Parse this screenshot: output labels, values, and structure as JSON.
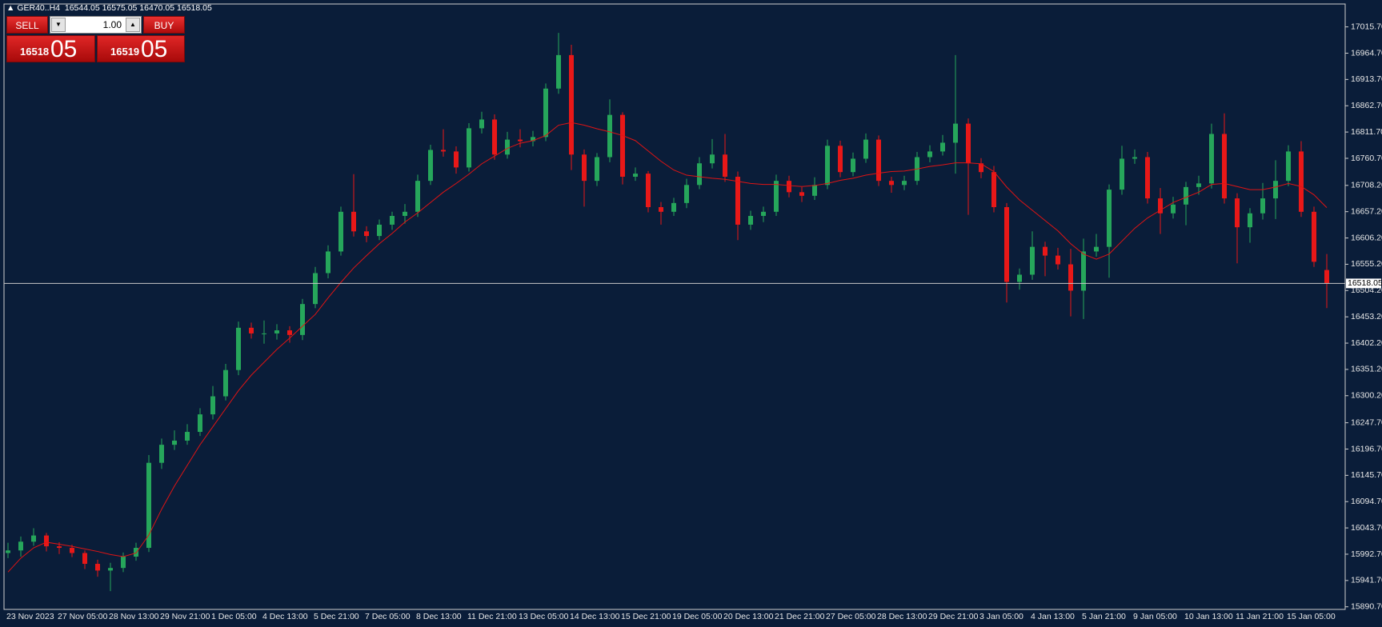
{
  "header": {
    "symbol": "GER40..H4",
    "ohlc": "16544.05 16575.05 16470.05 16518.05"
  },
  "trade_panel": {
    "sell": "SELL",
    "volume": "1.00",
    "buy": "BUY",
    "sell_price": {
      "main": "16518",
      "pips": "05"
    },
    "buy_price": {
      "main": "16519",
      "pips": "05"
    }
  },
  "chart_data": {
    "type": "candlestick",
    "categories": [
      "23 Nov 2023",
      null,
      null,
      null,
      "27 Nov 05:00",
      null,
      null,
      null,
      "28 Nov 13:00",
      null,
      null,
      null,
      "29 Nov 21:00",
      null,
      null,
      null,
      "1 Dec 05:00",
      null,
      null,
      null,
      "4 Dec 13:00",
      null,
      null,
      null,
      "5 Dec 21:00",
      null,
      null,
      null,
      "7 Dec 05:00",
      null,
      null,
      null,
      "8 Dec 13:00",
      null,
      null,
      null,
      "11 Dec 21:00",
      null,
      null,
      null,
      "13 Dec 05:00",
      null,
      null,
      null,
      "14 Dec 13:00",
      null,
      null,
      null,
      "15 Dec 21:00",
      null,
      null,
      null,
      "19 Dec 05:00",
      null,
      null,
      null,
      "20 Dec 13:00",
      null,
      null,
      null,
      "21 Dec 21:00",
      null,
      null,
      null,
      "27 Dec 05:00",
      null,
      null,
      null,
      "28 Dec 13:00",
      null,
      null,
      null,
      "29 Dec 21:00",
      null,
      null,
      null,
      "3 Jan 05:00",
      null,
      null,
      null,
      "4 Jan 13:00",
      null,
      null,
      null,
      "5 Jan 21:00",
      null,
      null,
      null,
      "9 Jan 05:00",
      null,
      null,
      null,
      "10 Jan 13:00",
      null,
      null,
      null,
      "11 Jan 21:00",
      null,
      null,
      null,
      "15 Jan 05:00",
      null,
      null,
      null
    ],
    "open": [
      15995,
      16000,
      16017,
      16029,
      16008,
      16005,
      15995,
      15974,
      15961,
      15966,
      15988,
      16005,
      16170,
      16205,
      16213,
      16230,
      16264,
      16299,
      16350,
      16432,
      16421,
      16421,
      16427,
      16418,
      16478,
      16538,
      16580,
      16657,
      16619,
      16610,
      16632,
      16649,
      16657,
      16717,
      16777,
      16774,
      16743,
      16819,
      16836,
      16768,
      16797,
      16794,
      16802,
      16896,
      16961,
      16768,
      16717,
      16763,
      16845,
      16725,
      16731,
      16666,
      16657,
      16674,
      16709,
      16751,
      16768,
      16725,
      16632,
      16649,
      16657,
      16717,
      16695,
      16688,
      16709,
      16785,
      16734,
      16760,
      16797,
      16717,
      16709,
      16717,
      16763,
      16774,
      16791,
      16828,
      16751,
      16734,
      16666,
      16521,
      16535,
      16589,
      16572,
      16555,
      16504,
      16580,
      16589,
      16700,
      16760,
      16763,
      16683,
      16654,
      16671,
      16705,
      16712,
      16808,
      16683,
      16627,
      16654,
      16683,
      16717,
      16774,
      16657,
      16544.05
    ],
    "high": [
      16015,
      16027,
      16043,
      16034,
      16016,
      16011,
      16000,
      15982,
      15976,
      15996,
      16015,
      16185,
      16217,
      16233,
      16245,
      16276,
      16319,
      16362,
      16444,
      16442,
      16446,
      16439,
      16435,
      16488,
      16550,
      16592,
      16667,
      16730,
      16629,
      16642,
      16657,
      16672,
      16729,
      16787,
      16817,
      16784,
      16829,
      16851,
      16846,
      16812,
      16817,
      16814,
      16906,
      17004,
      16981,
      16778,
      16771,
      16875,
      16850,
      16743,
      16736,
      16676,
      16684,
      16721,
      16763,
      16798,
      16808,
      16735,
      16659,
      16667,
      16729,
      16727,
      16705,
      16724,
      16797,
      16795,
      16772,
      16809,
      16805,
      16725,
      16727,
      16773,
      16786,
      16806,
      16961,
      16838,
      16761,
      16746,
      16674,
      16547,
      16619,
      16599,
      16587,
      16585,
      16605,
      16614,
      16710,
      16785,
      16778,
      16773,
      16703,
      16686,
      16715,
      16727,
      16828,
      16848,
      16693,
      16664,
      16713,
      16757,
      16786,
      16794,
      16667,
      16575.05
    ],
    "low": [
      15985,
      15988,
      16009,
      15998,
      15993,
      15987,
      15964,
      15949,
      15921,
      15958,
      15980,
      15997,
      16158,
      16195,
      16205,
      16222,
      16254,
      16291,
      16340,
      16411,
      16401,
      16409,
      16403,
      16408,
      16470,
      16528,
      16572,
      16609,
      16598,
      16602,
      16622,
      16634,
      16647,
      16709,
      16764,
      16731,
      16735,
      16809,
      16758,
      16760,
      16782,
      16784,
      16794,
      16886,
      16738,
      16667,
      16707,
      16753,
      16710,
      16717,
      16656,
      16632,
      16649,
      16664,
      16701,
      16741,
      16715,
      16602,
      16622,
      16637,
      16649,
      16685,
      16676,
      16680,
      16701,
      16724,
      16726,
      16752,
      16707,
      16694,
      16699,
      16709,
      16753,
      16766,
      16731,
      16651,
      16722,
      16656,
      16481,
      16506,
      16525,
      16532,
      16545,
      16454,
      16449,
      16570,
      16529,
      16690,
      16750,
      16673,
      16614,
      16644,
      16631,
      16690,
      16702,
      16673,
      16557,
      16597,
      16642,
      16643,
      16707,
      16647,
      16550,
      16470.05
    ],
    "close": [
      16000,
      16017,
      16029,
      16008,
      16005,
      15995,
      15974,
      15961,
      15966,
      15988,
      16005,
      16170,
      16205,
      16213,
      16230,
      16264,
      16299,
      16350,
      16432,
      16421,
      16421,
      16427,
      16418,
      16478,
      16538,
      16580,
      16657,
      16619,
      16610,
      16632,
      16649,
      16657,
      16717,
      16777,
      16774,
      16743,
      16819,
      16836,
      16768,
      16797,
      16794,
      16802,
      16896,
      16961,
      16768,
      16717,
      16763,
      16845,
      16725,
      16731,
      16666,
      16657,
      16674,
      16709,
      16751,
      16768,
      16725,
      16632,
      16649,
      16657,
      16717,
      16695,
      16688,
      16709,
      16785,
      16734,
      16760,
      16797,
      16717,
      16709,
      16717,
      16763,
      16774,
      16791,
      16828,
      16751,
      16734,
      16666,
      16521,
      16535,
      16589,
      16572,
      16555,
      16504,
      16580,
      16589,
      16700,
      16760,
      16763,
      16683,
      16654,
      16671,
      16705,
      16712,
      16808,
      16683,
      16627,
      16654,
      16683,
      16717,
      16774,
      16657,
      16560,
      16518.05
    ],
    "up_color": "#26a65b",
    "down_color": "#e81818",
    "ma": {
      "color": "#e01414",
      "values": [
        15958,
        15985,
        16005,
        16016,
        16012,
        16008,
        16003,
        15998,
        15992,
        15988,
        15995,
        16030,
        16080,
        16125,
        16165,
        16205,
        16240,
        16275,
        16310,
        16340,
        16365,
        16390,
        16412,
        16435,
        16458,
        16490,
        16520,
        16548,
        16572,
        16595,
        16615,
        16637,
        16655,
        16675,
        16695,
        16712,
        16730,
        16750,
        16765,
        16780,
        16790,
        16795,
        16805,
        16825,
        16830,
        16825,
        16818,
        16812,
        16805,
        16795,
        16775,
        16755,
        16738,
        16728,
        16725,
        16722,
        16720,
        16716,
        16712,
        16710,
        16710,
        16708,
        16706,
        16708,
        16712,
        16718,
        16722,
        16728,
        16732,
        16735,
        16736,
        16740,
        16745,
        16748,
        16752,
        16752,
        16750,
        16735,
        16705,
        16680,
        16660,
        16640,
        16620,
        16595,
        16575,
        16565,
        16575,
        16600,
        16625,
        16645,
        16660,
        16675,
        16685,
        16695,
        16710,
        16712,
        16706,
        16700,
        16700,
        16705,
        16712,
        16706,
        16690,
        16665
      ]
    },
    "current_price": 16518.05,
    "current_price_color": "#c8c8c8",
    "ylim": [
      15885.6,
      17060.1
    ],
    "yticks": [
      {
        "value": 15890.7,
        "label": "15890.70"
      },
      {
        "value": 15941.7,
        "label": "15941.70"
      },
      {
        "value": 15992.7,
        "label": "15992.70"
      },
      {
        "value": 16043.7,
        "label": "16043.70"
      },
      {
        "value": 16094.7,
        "label": "16094.70"
      },
      {
        "value": 16145.7,
        "label": "16145.70"
      },
      {
        "value": 16196.7,
        "label": "16196.70"
      },
      {
        "value": 16247.7,
        "label": "16247.70"
      },
      {
        "value": 16300.2,
        "label": "16300.20"
      },
      {
        "value": 16351.2,
        "label": "16351.20"
      },
      {
        "value": 16402.2,
        "label": "16402.20"
      },
      {
        "value": 16453.2,
        "label": "16453.20"
      },
      {
        "value": 16504.2,
        "label": "16504.20"
      },
      {
        "value": 16555.2,
        "label": "16555.20"
      },
      {
        "value": 16606.2,
        "label": "16606.20"
      },
      {
        "value": 16657.2,
        "label": "16657.20"
      },
      {
        "value": 16708.2,
        "label": "16708.20"
      },
      {
        "value": 16760.7,
        "label": "16760.70"
      },
      {
        "value": 16811.7,
        "label": "16811.70"
      },
      {
        "value": 16862.7,
        "label": "16862.70"
      },
      {
        "value": 16913.7,
        "label": "16913.70"
      },
      {
        "value": 16964.7,
        "label": "16964.70"
      },
      {
        "value": 17015.7,
        "label": "17015.70"
      }
    ],
    "grid": false
  }
}
